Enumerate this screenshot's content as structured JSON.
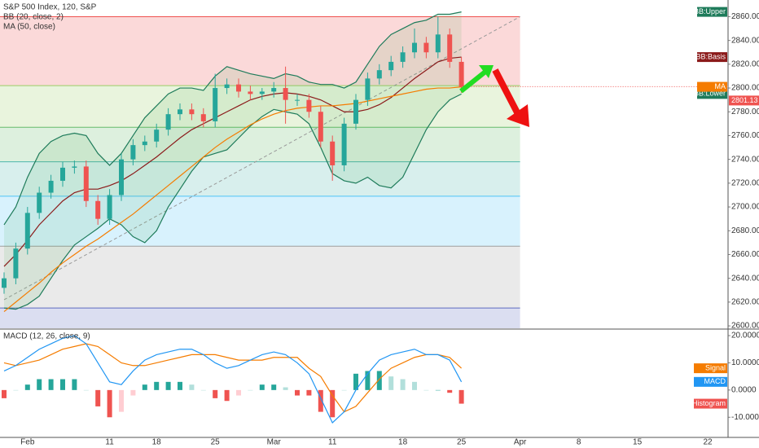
{
  "chart_data": [
    {
      "type": "candlestick",
      "title": "S&P 500 Index, 120, S&P",
      "indicators": [
        "BB (20, close, 2)",
        "MA (50, close)"
      ],
      "categories": [
        null,
        null,
        "Feb",
        null,
        null,
        null,
        null,
        null,
        null,
        "11",
        null,
        null,
        null,
        "18",
        null,
        null,
        null,
        null,
        "25",
        null,
        null,
        null,
        null,
        "Mar",
        null,
        null,
        null,
        null,
        "11",
        null,
        null,
        null,
        null,
        null,
        "18",
        null,
        null,
        null,
        null,
        "25",
        null,
        null,
        null,
        null,
        "Apr",
        null,
        null,
        null,
        null,
        "8",
        null,
        null,
        null,
        null,
        "15",
        null,
        null,
        null,
        null,
        null,
        "22"
      ],
      "open": [
        2632,
        2640,
        2665,
        2695,
        2712,
        2722,
        2733,
        2734,
        2705,
        2690,
        2710,
        2740,
        2752,
        2755,
        2765,
        2778,
        2782,
        2778,
        2772,
        2800,
        2803,
        2797,
        2795,
        2797,
        2800,
        2790,
        2790,
        2780,
        2755,
        2735,
        2770,
        2790,
        2808,
        2815,
        2822,
        2830,
        2838,
        2830,
        2845,
        2822,
        null,
        null,
        null,
        null,
        null,
        null,
        null,
        null,
        null,
        null,
        null,
        null,
        null,
        null,
        null,
        null,
        null,
        null,
        null,
        null,
        null
      ],
      "high": [
        2645,
        2670,
        2700,
        2717,
        2727,
        2738,
        2739,
        2739,
        2710,
        2715,
        2745,
        2757,
        2760,
        2770,
        2783,
        2787,
        2787,
        2783,
        2812,
        2808,
        2808,
        2802,
        2800,
        2805,
        2818,
        2795,
        2795,
        2785,
        2760,
        2775,
        2795,
        2813,
        2820,
        2827,
        2835,
        2850,
        2843,
        2860,
        2850,
        2826,
        null,
        null,
        null,
        null,
        null,
        null,
        null,
        null,
        null,
        null,
        null,
        null,
        null,
        null,
        null,
        null,
        null,
        null,
        null,
        null,
        null
      ],
      "low": [
        2627,
        2635,
        2660,
        2690,
        2707,
        2717,
        2728,
        2700,
        2685,
        2685,
        2705,
        2735,
        2747,
        2750,
        2760,
        2773,
        2773,
        2767,
        2767,
        2795,
        2792,
        2790,
        2790,
        2792,
        2770,
        2785,
        2775,
        2750,
        2722,
        2730,
        2765,
        2785,
        2803,
        2810,
        2817,
        2825,
        2825,
        2825,
        2817,
        2796,
        null,
        null,
        null,
        null,
        null,
        null,
        null,
        null,
        null,
        null,
        null,
        null,
        null,
        null,
        null,
        null,
        null,
        null,
        null,
        null,
        null
      ],
      "close": [
        2640,
        2665,
        2695,
        2712,
        2722,
        2733,
        2734,
        2705,
        2690,
        2710,
        2740,
        2752,
        2755,
        2765,
        2778,
        2782,
        2778,
        2772,
        2800,
        2803,
        2797,
        2795,
        2797,
        2800,
        2790,
        2790,
        2780,
        2755,
        2735,
        2770,
        2790,
        2808,
        2815,
        2822,
        2830,
        2838,
        2830,
        2845,
        2822,
        2801.13,
        null,
        null,
        null,
        null,
        null,
        null,
        null,
        null,
        null,
        null,
        null,
        null,
        null,
        null,
        null,
        null,
        null,
        null,
        null,
        null,
        null
      ],
      "up_color": "#26a69a",
      "down_color": "#ef5350",
      "series": [
        {
          "name": "BB:Upper",
          "color": "#1e7b5a",
          "values": [
            2685,
            2700,
            2725,
            2745,
            2755,
            2760,
            2762,
            2760,
            2745,
            2735,
            2745,
            2760,
            2775,
            2785,
            2795,
            2800,
            2800,
            2798,
            2810,
            2818,
            2815,
            2812,
            2810,
            2808,
            2812,
            2810,
            2805,
            2803,
            2803,
            2800,
            2805,
            2820,
            2835,
            2845,
            2850,
            2855,
            2857,
            2862,
            2862,
            2864,
            null,
            null,
            null,
            null,
            null,
            null,
            null,
            null,
            null,
            null,
            null,
            null,
            null,
            null,
            null,
            null,
            null,
            null,
            null,
            null,
            null
          ]
        },
        {
          "name": "BB:Basis",
          "color": "#8b1a1a",
          "values": [
            2650,
            2660,
            2672,
            2685,
            2695,
            2705,
            2712,
            2715,
            2715,
            2718,
            2722,
            2728,
            2735,
            2742,
            2750,
            2758,
            2765,
            2770,
            2775,
            2780,
            2785,
            2790,
            2793,
            2795,
            2796,
            2795,
            2793,
            2790,
            2785,
            2780,
            2780,
            2782,
            2786,
            2792,
            2800,
            2808,
            2815,
            2822,
            2825,
            2826,
            null,
            null,
            null,
            null,
            null,
            null,
            null,
            null,
            null,
            null,
            null,
            null,
            null,
            null,
            null,
            null,
            null,
            null,
            null,
            null,
            null
          ]
        },
        {
          "name": "BB:Lower",
          "color": "#1e7b5a",
          "values": [
            2615,
            2614,
            2618,
            2625,
            2640,
            2655,
            2668,
            2675,
            2682,
            2690,
            2685,
            2675,
            2670,
            2680,
            2700,
            2715,
            2730,
            2742,
            2745,
            2748,
            2758,
            2768,
            2776,
            2782,
            2780,
            2778,
            2770,
            2750,
            2728,
            2722,
            2720,
            2725,
            2718,
            2716,
            2725,
            2745,
            2765,
            2780,
            2790,
            2795,
            null,
            null,
            null,
            null,
            null,
            null,
            null,
            null,
            null,
            null,
            null,
            null,
            null,
            null,
            null,
            null,
            null,
            null,
            null,
            null,
            null
          ]
        },
        {
          "name": "MA",
          "color": "#f57c00",
          "values": [
            2612,
            2620,
            2628,
            2636,
            2645,
            2653,
            2660,
            2667,
            2673,
            2680,
            2687,
            2694,
            2702,
            2710,
            2718,
            2726,
            2734,
            2742,
            2750,
            2757,
            2763,
            2769,
            2774,
            2778,
            2781,
            2783,
            2784,
            2785,
            2785,
            2786,
            2787,
            2789,
            2791,
            2793,
            2795,
            2797,
            2799,
            2800,
            2800,
            2801,
            null,
            null,
            null,
            null,
            null,
            null,
            null,
            null,
            null,
            null,
            null,
            null,
            null,
            null,
            null,
            null,
            null,
            null,
            null,
            null,
            null
          ]
        }
      ],
      "band_fill": "#4caf50",
      "levels": [
        2860,
        2802,
        2767,
        2738,
        2709,
        2667,
        2615
      ],
      "level_colors": [
        "#ef5350",
        "#9ccc65",
        "#66bb6a",
        "#4db6ac",
        "#4fc3f7",
        "#9e9e9e",
        "#5c6bc0"
      ],
      "trendline": [
        2622,
        2860
      ],
      "ylim": [
        2598,
        2874
      ],
      "yticks": [
        {
          "value": 2600,
          "label": "2600.00"
        },
        {
          "value": 2620,
          "label": "2620.00"
        },
        {
          "value": 2640,
          "label": "2640.00"
        },
        {
          "value": 2660,
          "label": "2660.00"
        },
        {
          "value": 2680,
          "label": "2680.00"
        },
        {
          "value": 2700,
          "label": "2700.00"
        },
        {
          "value": 2720,
          "label": "2720.00"
        },
        {
          "value": 2740,
          "label": "2740.00"
        },
        {
          "value": 2760,
          "label": "2760.00"
        },
        {
          "value": 2780,
          "label": "2780.00"
        },
        {
          "value": 2800,
          "label": "2800.00"
        },
        {
          "value": 2820,
          "label": "2820.00"
        },
        {
          "value": 2840,
          "label": "2840.00"
        },
        {
          "value": 2860,
          "label": "2860.00"
        }
      ]
    },
    {
      "type": "macd",
      "title": "MACD (12, 26, close, 9)",
      "series": [
        {
          "name": "Signal",
          "color": "#f57c00",
          "values": [
            10,
            9,
            10,
            11,
            13,
            15,
            16,
            17,
            16,
            13,
            10,
            9,
            9,
            10,
            11,
            12,
            13,
            13,
            13,
            12,
            11,
            11,
            11,
            12,
            12,
            12,
            8,
            5,
            -2,
            -8,
            -6,
            -1,
            4,
            8,
            10,
            12,
            13,
            13,
            12,
            8,
            null,
            null,
            null,
            null,
            null,
            null,
            null,
            null,
            null,
            null,
            null,
            null,
            null,
            null,
            null,
            null,
            null,
            null,
            null,
            null,
            null
          ]
        },
        {
          "name": "MACD",
          "color": "#2196f3",
          "values": [
            7,
            9,
            12,
            15,
            17,
            19,
            20,
            17,
            10,
            3,
            2,
            7,
            11,
            13,
            14,
            15,
            15,
            13,
            10,
            8,
            9,
            11,
            13,
            14,
            13,
            10,
            6,
            -3,
            -12,
            -8,
            0,
            6,
            11,
            13,
            14,
            15,
            13,
            13,
            11,
            3,
            null,
            null,
            null,
            null,
            null,
            null,
            null,
            null,
            null,
            null,
            null,
            null,
            null,
            null,
            null,
            null,
            null,
            null,
            null,
            null,
            null
          ]
        }
      ],
      "histogram": {
        "name": "Histogram",
        "values": [
          -3,
          0,
          2,
          4,
          4,
          4,
          4,
          0,
          -6,
          -10,
          -8,
          -2,
          2,
          3,
          3,
          3,
          2,
          0,
          -3,
          -4,
          -2,
          0,
          2,
          2,
          1,
          -2,
          -2,
          -8,
          -10,
          0,
          6,
          7,
          7,
          5,
          4,
          3,
          0,
          0,
          -1,
          -5,
          null,
          null,
          null,
          null,
          null,
          null,
          null,
          null,
          null,
          null,
          null,
          null,
          null,
          null,
          null,
          null,
          null,
          null,
          null,
          null,
          null
        ],
        "colors": [
          "#26a69a",
          "#b2dfdb",
          "#ffcdd2",
          "#ef5350"
        ]
      },
      "ylim": [
        -17.4,
        22.1
      ],
      "yticks": [
        {
          "value": -10,
          "label": "-10.0000"
        },
        {
          "value": 0,
          "label": "0.0000"
        },
        {
          "value": 10,
          "label": "10.0000"
        },
        {
          "value": 20,
          "label": "20.0000"
        }
      ]
    }
  ]
}
